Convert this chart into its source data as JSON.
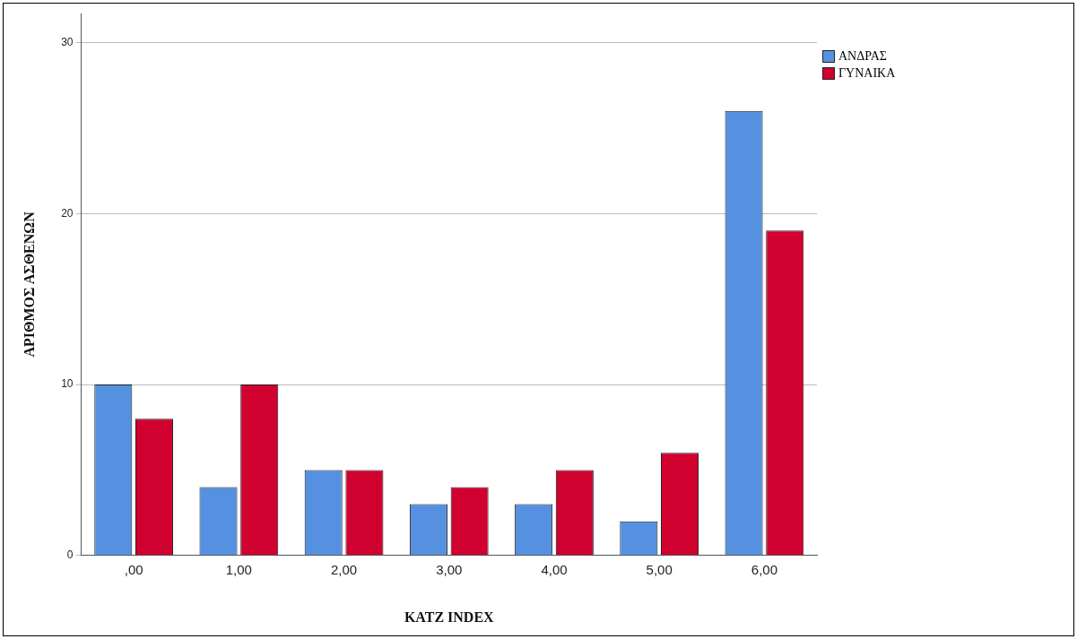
{
  "chart_data": {
    "type": "bar",
    "xlabel": "KATZ INDEX",
    "ylabel": "ΑΡΙΘΜΟΣ ΑΣΘΕΝΩΝ",
    "categories": [
      ",00",
      "1,00",
      "2,00",
      "3,00",
      "4,00",
      "5,00",
      "6,00"
    ],
    "series": [
      {
        "name": "ΑΝΔΡΑΣ",
        "color": "#5591e0",
        "values": [
          10,
          4,
          5,
          3,
          3,
          2,
          26
        ]
      },
      {
        "name": "ΓΥΝΑΙΚΑ",
        "color": "#d0002f",
        "values": [
          8,
          10,
          5,
          4,
          5,
          6,
          19
        ]
      }
    ],
    "ylim": [
      0,
      31.7
    ],
    "yticks": [
      0,
      10,
      20,
      30
    ],
    "grid": "y",
    "legend": "top right"
  }
}
